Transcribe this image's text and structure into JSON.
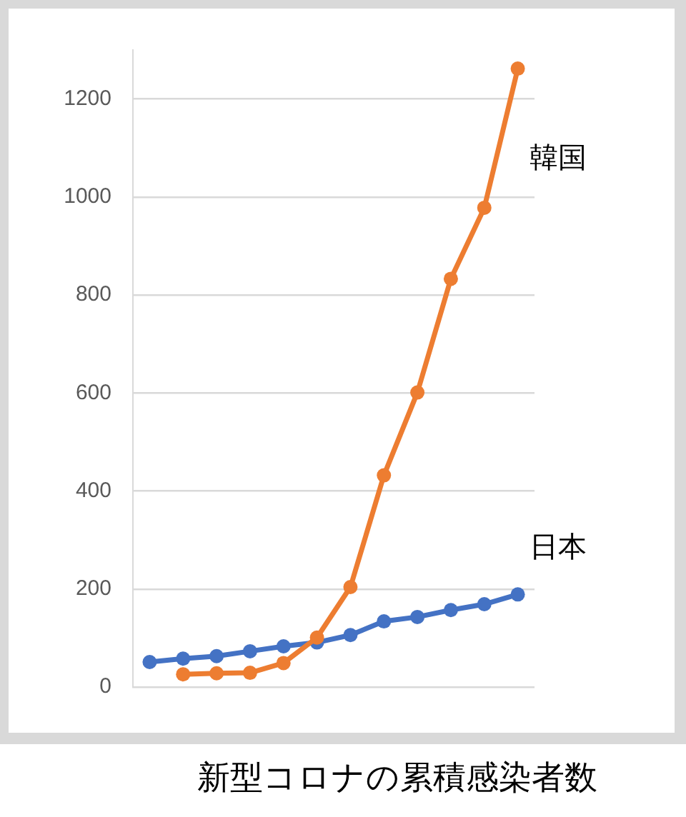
{
  "chart_data": {
    "type": "line",
    "title": "新型コロナの累積感染者数",
    "categories": [
      null,
      null,
      null,
      null,
      null,
      null,
      null,
      null,
      null,
      null,
      null,
      null
    ],
    "series": [
      {
        "name": "日本",
        "color": "#4472c4",
        "values": [
          51,
          58,
          63,
          73,
          83,
          91,
          106,
          134,
          143,
          157,
          169,
          189
        ]
      },
      {
        "name": "韓国",
        "color": "#ed7d31",
        "values": [
          null,
          26,
          28,
          29,
          49,
          101,
          204,
          432,
          601,
          833,
          978,
          1262
        ]
      }
    ],
    "ylim": [
      0,
      1300
    ],
    "yticks": [
      0,
      200,
      400,
      600,
      800,
      1000,
      1200
    ],
    "grid": "y",
    "legend": false,
    "tick_labels": "y",
    "marker": "circle"
  }
}
